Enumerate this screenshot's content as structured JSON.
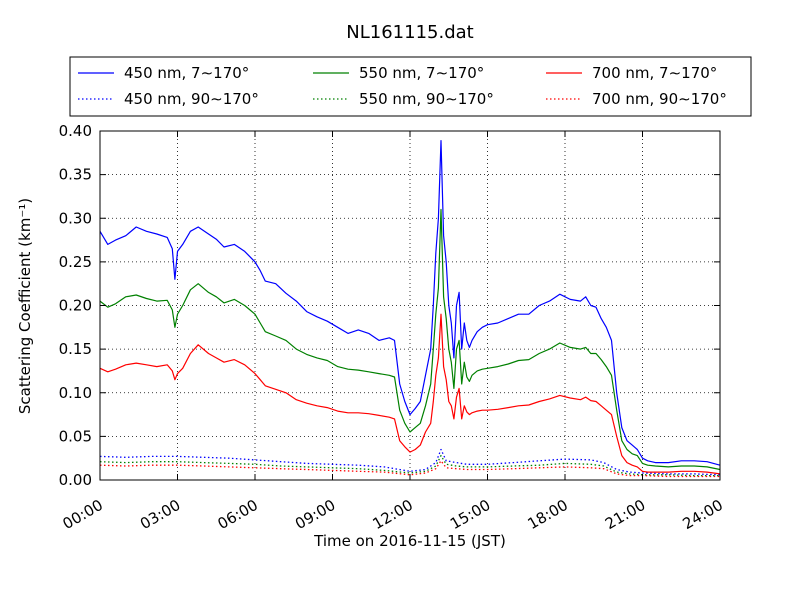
{
  "chart_data": {
    "type": "line",
    "title": "NL161115.dat",
    "xlabel": "Time on 2016-11-15 (JST)",
    "ylabel": "Scattering Coefficient (km⁻¹)",
    "xlim": [
      0,
      24
    ],
    "ylim": [
      0.0,
      0.4
    ],
    "grid": true,
    "legend_position": "top, above plot",
    "x_tick_labels": [
      "00:00",
      "03:00",
      "06:00",
      "09:00",
      "12:00",
      "15:00",
      "18:00",
      "21:00",
      "24:00"
    ],
    "x_tick_values": [
      0,
      3,
      6,
      9,
      12,
      15,
      18,
      21,
      24
    ],
    "y_tick_labels": [
      "0.00",
      "0.05",
      "0.10",
      "0.15",
      "0.20",
      "0.25",
      "0.30",
      "0.35",
      "0.40"
    ],
    "y_tick_values": [
      0.0,
      0.05,
      0.1,
      0.15,
      0.2,
      0.25,
      0.3,
      0.35,
      0.4
    ],
    "series": [
      {
        "name": "450 nm, 7∼170°",
        "color": "#0000ff",
        "style": "solid",
        "x": [
          0,
          0.3,
          0.6,
          1.0,
          1.4,
          1.8,
          2.2,
          2.6,
          2.8,
          2.9,
          3.0,
          3.2,
          3.5,
          3.8,
          4.2,
          4.5,
          4.8,
          5.2,
          5.6,
          6.0,
          6.2,
          6.4,
          6.8,
          7.2,
          7.6,
          8.0,
          8.4,
          8.8,
          9.2,
          9.6,
          10.0,
          10.4,
          10.8,
          11.2,
          11.4,
          11.6,
          11.8,
          12.0,
          12.2,
          12.4,
          12.6,
          12.8,
          12.9,
          13.0,
          13.1,
          13.2,
          13.3,
          13.4,
          13.5,
          13.6,
          13.7,
          13.8,
          13.9,
          14.0,
          14.1,
          14.2,
          14.3,
          14.4,
          14.6,
          14.8,
          15.0,
          15.4,
          15.8,
          16.2,
          16.6,
          17.0,
          17.4,
          17.8,
          18.2,
          18.6,
          18.8,
          19.0,
          19.2,
          19.4,
          19.6,
          19.8,
          20.0,
          20.2,
          20.4,
          20.6,
          20.8,
          21.0,
          21.2,
          21.5,
          22.0,
          22.5,
          23.0,
          23.5,
          24.0
        ],
        "y": [
          0.285,
          0.27,
          0.275,
          0.28,
          0.29,
          0.285,
          0.282,
          0.278,
          0.265,
          0.23,
          0.262,
          0.27,
          0.285,
          0.29,
          0.282,
          0.276,
          0.267,
          0.27,
          0.262,
          0.25,
          0.24,
          0.228,
          0.225,
          0.214,
          0.205,
          0.193,
          0.187,
          0.182,
          0.175,
          0.168,
          0.172,
          0.168,
          0.16,
          0.163,
          0.16,
          0.11,
          0.09,
          0.075,
          0.082,
          0.09,
          0.12,
          0.15,
          0.2,
          0.26,
          0.3,
          0.389,
          0.28,
          0.25,
          0.2,
          0.18,
          0.14,
          0.2,
          0.215,
          0.15,
          0.18,
          0.16,
          0.152,
          0.16,
          0.17,
          0.175,
          0.178,
          0.18,
          0.185,
          0.19,
          0.19,
          0.2,
          0.205,
          0.213,
          0.207,
          0.205,
          0.21,
          0.2,
          0.198,
          0.185,
          0.175,
          0.16,
          0.1,
          0.06,
          0.045,
          0.04,
          0.035,
          0.025,
          0.022,
          0.02,
          0.02,
          0.022,
          0.022,
          0.021,
          0.017
        ]
      },
      {
        "name": "450 nm, 90∼170°",
        "color": "#0000ff",
        "style": "dotted",
        "x": [
          0,
          1,
          2,
          3,
          4,
          5,
          6,
          7,
          8,
          9,
          10,
          11,
          12,
          12.6,
          13.0,
          13.2,
          13.4,
          13.8,
          14.2,
          14.6,
          15,
          16,
          17,
          18,
          19,
          19.5,
          20,
          20.5,
          21,
          22,
          23,
          24
        ],
        "y": [
          0.027,
          0.026,
          0.027,
          0.027,
          0.026,
          0.025,
          0.023,
          0.021,
          0.019,
          0.018,
          0.017,
          0.015,
          0.01,
          0.012,
          0.02,
          0.035,
          0.022,
          0.02,
          0.018,
          0.018,
          0.018,
          0.02,
          0.022,
          0.024,
          0.023,
          0.02,
          0.012,
          0.009,
          0.008,
          0.007,
          0.007,
          0.006
        ]
      },
      {
        "name": "550 nm, 7∼170°",
        "color": "#008000",
        "style": "solid",
        "x": [
          0,
          0.3,
          0.6,
          1.0,
          1.4,
          1.8,
          2.2,
          2.6,
          2.8,
          2.9,
          3.0,
          3.2,
          3.5,
          3.8,
          4.2,
          4.5,
          4.8,
          5.2,
          5.6,
          6.0,
          6.2,
          6.4,
          6.8,
          7.2,
          7.6,
          8.0,
          8.4,
          8.8,
          9.2,
          9.6,
          10.0,
          10.4,
          10.8,
          11.2,
          11.4,
          11.6,
          11.8,
          12.0,
          12.2,
          12.4,
          12.6,
          12.8,
          12.9,
          13.0,
          13.1,
          13.2,
          13.3,
          13.4,
          13.5,
          13.6,
          13.7,
          13.8,
          13.9,
          14.0,
          14.1,
          14.2,
          14.3,
          14.4,
          14.6,
          14.8,
          15.0,
          15.4,
          15.8,
          16.2,
          16.6,
          17.0,
          17.4,
          17.8,
          18.2,
          18.6,
          18.8,
          19.0,
          19.2,
          19.4,
          19.6,
          19.8,
          20.0,
          20.2,
          20.4,
          20.6,
          20.8,
          21.0,
          21.2,
          21.5,
          22.0,
          22.5,
          23.0,
          23.5,
          24.0
        ],
        "y": [
          0.205,
          0.198,
          0.202,
          0.21,
          0.212,
          0.208,
          0.205,
          0.206,
          0.195,
          0.175,
          0.19,
          0.2,
          0.218,
          0.225,
          0.215,
          0.21,
          0.203,
          0.207,
          0.2,
          0.19,
          0.18,
          0.17,
          0.165,
          0.16,
          0.15,
          0.144,
          0.14,
          0.137,
          0.13,
          0.127,
          0.126,
          0.124,
          0.122,
          0.12,
          0.118,
          0.08,
          0.065,
          0.055,
          0.06,
          0.065,
          0.085,
          0.11,
          0.15,
          0.19,
          0.22,
          0.31,
          0.21,
          0.185,
          0.15,
          0.135,
          0.105,
          0.15,
          0.16,
          0.11,
          0.135,
          0.118,
          0.113,
          0.12,
          0.125,
          0.127,
          0.128,
          0.13,
          0.133,
          0.137,
          0.138,
          0.145,
          0.15,
          0.157,
          0.152,
          0.15,
          0.152,
          0.145,
          0.145,
          0.138,
          0.13,
          0.12,
          0.08,
          0.045,
          0.035,
          0.03,
          0.028,
          0.019,
          0.017,
          0.016,
          0.015,
          0.016,
          0.016,
          0.015,
          0.012
        ]
      },
      {
        "name": "550 nm, 90∼170°",
        "color": "#008000",
        "style": "dotted",
        "x": [
          0,
          1,
          2,
          3,
          4,
          5,
          6,
          7,
          8,
          9,
          10,
          11,
          12,
          12.6,
          13.0,
          13.2,
          13.4,
          13.8,
          14.2,
          14.6,
          15,
          16,
          17,
          18,
          19,
          19.5,
          20,
          20.5,
          21,
          22,
          23,
          24
        ],
        "y": [
          0.021,
          0.02,
          0.021,
          0.021,
          0.02,
          0.019,
          0.018,
          0.016,
          0.015,
          0.014,
          0.013,
          0.011,
          0.008,
          0.01,
          0.016,
          0.028,
          0.018,
          0.016,
          0.015,
          0.015,
          0.015,
          0.016,
          0.017,
          0.019,
          0.018,
          0.016,
          0.009,
          0.007,
          0.006,
          0.006,
          0.005,
          0.005
        ]
      },
      {
        "name": "700 nm, 7∼170°",
        "color": "#ff0000",
        "style": "solid",
        "x": [
          0,
          0.3,
          0.6,
          1.0,
          1.4,
          1.8,
          2.2,
          2.6,
          2.8,
          2.9,
          3.0,
          3.2,
          3.5,
          3.8,
          4.2,
          4.5,
          4.8,
          5.2,
          5.6,
          6.0,
          6.2,
          6.4,
          6.8,
          7.2,
          7.6,
          8.0,
          8.4,
          8.8,
          9.2,
          9.6,
          10.0,
          10.4,
          10.8,
          11.2,
          11.4,
          11.6,
          11.8,
          12.0,
          12.2,
          12.4,
          12.6,
          12.8,
          12.9,
          13.0,
          13.1,
          13.2,
          13.3,
          13.4,
          13.5,
          13.6,
          13.7,
          13.8,
          13.9,
          14.0,
          14.1,
          14.2,
          14.3,
          14.4,
          14.6,
          14.8,
          15.0,
          15.4,
          15.8,
          16.2,
          16.6,
          17.0,
          17.4,
          17.8,
          18.2,
          18.6,
          18.8,
          19.0,
          19.2,
          19.4,
          19.6,
          19.8,
          20.0,
          20.2,
          20.4,
          20.6,
          20.8,
          21.0,
          21.2,
          21.5,
          22.0,
          22.5,
          23.0,
          23.5,
          24.0
        ],
        "y": [
          0.128,
          0.124,
          0.127,
          0.132,
          0.134,
          0.132,
          0.13,
          0.132,
          0.125,
          0.115,
          0.122,
          0.128,
          0.145,
          0.155,
          0.145,
          0.14,
          0.135,
          0.138,
          0.132,
          0.122,
          0.115,
          0.108,
          0.104,
          0.1,
          0.092,
          0.088,
          0.085,
          0.083,
          0.079,
          0.077,
          0.077,
          0.076,
          0.074,
          0.072,
          0.07,
          0.045,
          0.038,
          0.032,
          0.035,
          0.04,
          0.055,
          0.065,
          0.09,
          0.12,
          0.14,
          0.19,
          0.13,
          0.115,
          0.09,
          0.085,
          0.07,
          0.095,
          0.105,
          0.07,
          0.085,
          0.078,
          0.075,
          0.077,
          0.079,
          0.08,
          0.08,
          0.081,
          0.083,
          0.085,
          0.086,
          0.09,
          0.093,
          0.097,
          0.094,
          0.092,
          0.095,
          0.091,
          0.09,
          0.085,
          0.08,
          0.075,
          0.05,
          0.028,
          0.02,
          0.017,
          0.015,
          0.01,
          0.009,
          0.009,
          0.009,
          0.01,
          0.01,
          0.009,
          0.007
        ]
      },
      {
        "name": "700 nm, 90∼170°",
        "color": "#ff0000",
        "style": "dotted",
        "x": [
          0,
          1,
          2,
          3,
          4,
          5,
          6,
          7,
          8,
          9,
          10,
          11,
          12,
          12.6,
          13.0,
          13.2,
          13.4,
          13.8,
          14.2,
          14.6,
          15,
          16,
          17,
          18,
          19,
          19.5,
          20,
          20.5,
          21,
          22,
          23,
          24
        ],
        "y": [
          0.017,
          0.016,
          0.017,
          0.017,
          0.016,
          0.015,
          0.014,
          0.013,
          0.012,
          0.011,
          0.01,
          0.009,
          0.006,
          0.008,
          0.013,
          0.022,
          0.014,
          0.013,
          0.012,
          0.012,
          0.012,
          0.013,
          0.014,
          0.015,
          0.014,
          0.013,
          0.007,
          0.005,
          0.005,
          0.004,
          0.004,
          0.004
        ]
      }
    ]
  }
}
